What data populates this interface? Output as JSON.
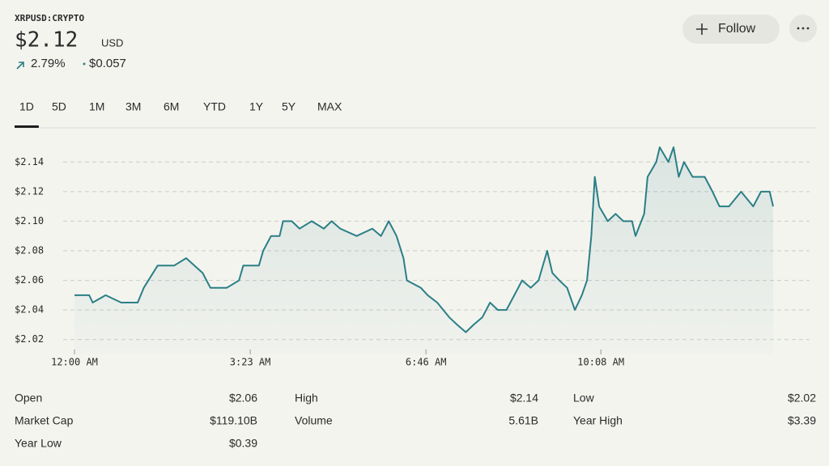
{
  "header": {
    "symbol": "XRPUSD:CRYPTO",
    "price": "$2.12",
    "currency": "USD",
    "change_percent": "2.79%",
    "change_amount": "$0.057"
  },
  "buttons": {
    "follow": "Follow"
  },
  "tabs": [
    "1D",
    "5D",
    "1M",
    "3M",
    "6M",
    "YTD",
    "1Y",
    "5Y",
    "MAX"
  ],
  "active_tab": "1D",
  "chart_data": {
    "type": "line",
    "x": [
      0,
      17,
      21,
      36,
      54,
      73,
      80,
      96,
      115,
      129,
      148,
      157,
      176,
      190,
      195,
      213,
      218,
      227,
      237,
      241,
      251,
      260,
      274,
      288,
      297,
      307,
      326,
      344,
      354,
      363,
      372,
      380,
      384,
      400,
      408,
      419,
      433,
      442,
      452,
      461,
      471,
      480,
      489,
      499,
      508,
      517,
      527,
      536,
      546,
      552,
      560,
      569,
      578,
      586,
      592,
      597,
      601,
      606,
      616,
      625,
      634,
      644,
      648,
      658,
      662,
      672,
      676,
      686,
      692,
      698,
      704,
      714,
      728,
      737,
      745,
      756,
      770,
      784,
      793,
      803,
      807
    ],
    "series": [
      {
        "name": "XRPUSD",
        "color": "#2a7f86",
        "values": [
          2.05,
          2.05,
          2.045,
          2.05,
          2.045,
          2.045,
          2.055,
          2.07,
          2.07,
          2.075,
          2.065,
          2.055,
          2.055,
          2.06,
          2.07,
          2.07,
          2.08,
          2.09,
          2.09,
          2.1,
          2.1,
          2.095,
          2.1,
          2.095,
          2.1,
          2.095,
          2.09,
          2.095,
          2.09,
          2.1,
          2.09,
          2.075,
          2.06,
          2.055,
          2.05,
          2.045,
          2.035,
          2.03,
          2.025,
          2.03,
          2.035,
          2.045,
          2.04,
          2.04,
          2.05,
          2.06,
          2.055,
          2.06,
          2.08,
          2.065,
          2.06,
          2.055,
          2.04,
          2.05,
          2.06,
          2.09,
          2.13,
          2.11,
          2.1,
          2.105,
          2.1,
          2.1,
          2.09,
          2.105,
          2.13,
          2.14,
          2.15,
          2.14,
          2.15,
          2.13,
          2.14,
          2.13,
          2.13,
          2.12,
          2.11,
          2.11,
          2.12,
          2.11,
          2.12,
          2.12,
          2.11
        ]
      }
    ],
    "xlim": [
      0,
      807
    ],
    "xticks": [
      {
        "value": 0,
        "label": "12:00 AM"
      },
      {
        "value": 203,
        "label": "3:23 AM"
      },
      {
        "value": 406,
        "label": "6:46 AM"
      },
      {
        "value": 608,
        "label": "10:08 AM"
      }
    ],
    "ylim": [
      2.01,
      2.15
    ],
    "yticks": [
      {
        "value": 2.02,
        "label": "$2.02"
      },
      {
        "value": 2.04,
        "label": "$2.04"
      },
      {
        "value": 2.06,
        "label": "$2.06"
      },
      {
        "value": 2.08,
        "label": "$2.08"
      },
      {
        "value": 2.1,
        "label": "$2.10"
      },
      {
        "value": 2.12,
        "label": "$2.12"
      },
      {
        "value": 2.14,
        "label": "$2.14"
      }
    ],
    "grid": true
  },
  "stats": [
    {
      "label": "Open",
      "value": "$2.06"
    },
    {
      "label": "High",
      "value": "$2.14"
    },
    {
      "label": "Low",
      "value": "$2.02"
    },
    {
      "label": "Market Cap",
      "value": "$119.10B"
    },
    {
      "label": "Volume",
      "value": "5.61B"
    },
    {
      "label": "Year High",
      "value": "$3.39"
    },
    {
      "label": "Year Low",
      "value": "$0.39"
    }
  ]
}
